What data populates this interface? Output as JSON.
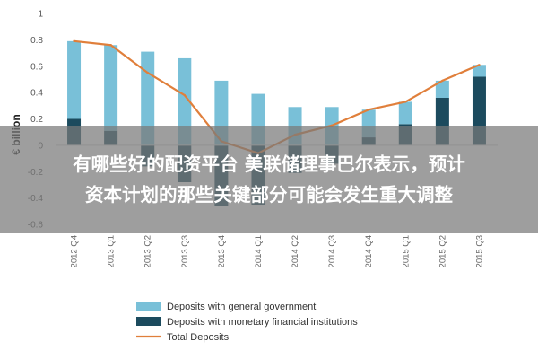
{
  "chart_data": {
    "type": "bar",
    "stacked": true,
    "ylabel": "€ billion",
    "ylim": [
      -0.6,
      1.0
    ],
    "yticks": [
      -0.6,
      -0.4,
      -0.2,
      0,
      0.2,
      0.4,
      0.6,
      0.8,
      1
    ],
    "ytick_labels": [
      "-0.6",
      "-0.4",
      "-0.2",
      "0",
      "0.2",
      "0.4",
      "0.6",
      "0.8",
      "1"
    ],
    "categories": [
      "2012 Q4",
      "2013 Q1",
      "2013 Q2",
      "2013 Q3",
      "2013 Q4",
      "2014 Q1",
      "2014 Q2",
      "2014 Q3",
      "2014 Q4",
      "2015 Q1",
      "2015 Q2",
      "2015 Q3"
    ],
    "series": [
      {
        "name": "Deposits with general government",
        "kind": "bar",
        "color": "#79c0d8",
        "values": [
          0.59,
          0.65,
          0.71,
          0.66,
          0.49,
          0.39,
          0.29,
          0.29,
          0.21,
          0.17,
          0.13,
          0.09
        ]
      },
      {
        "name": "Deposits with monetary financial institutions",
        "kind": "bar",
        "color": "#1c4b5e",
        "values": [
          0.2,
          0.11,
          -0.16,
          -0.28,
          -0.46,
          -0.45,
          -0.21,
          -0.14,
          0.06,
          0.16,
          0.36,
          0.52
        ]
      },
      {
        "name": "Total Deposits",
        "kind": "line",
        "color": "#e07f3b",
        "values": [
          0.79,
          0.76,
          0.55,
          0.38,
          0.03,
          -0.06,
          0.08,
          0.15,
          0.27,
          0.33,
          0.49,
          0.61
        ]
      }
    ],
    "legend_position": "bottom",
    "grid": false
  },
  "overlay": {
    "lines": [
      "有哪些好的配资平台 美联储理事巴尔表示，预计",
      "资本计划的那些关键部分可能会发生重大调整"
    ]
  }
}
